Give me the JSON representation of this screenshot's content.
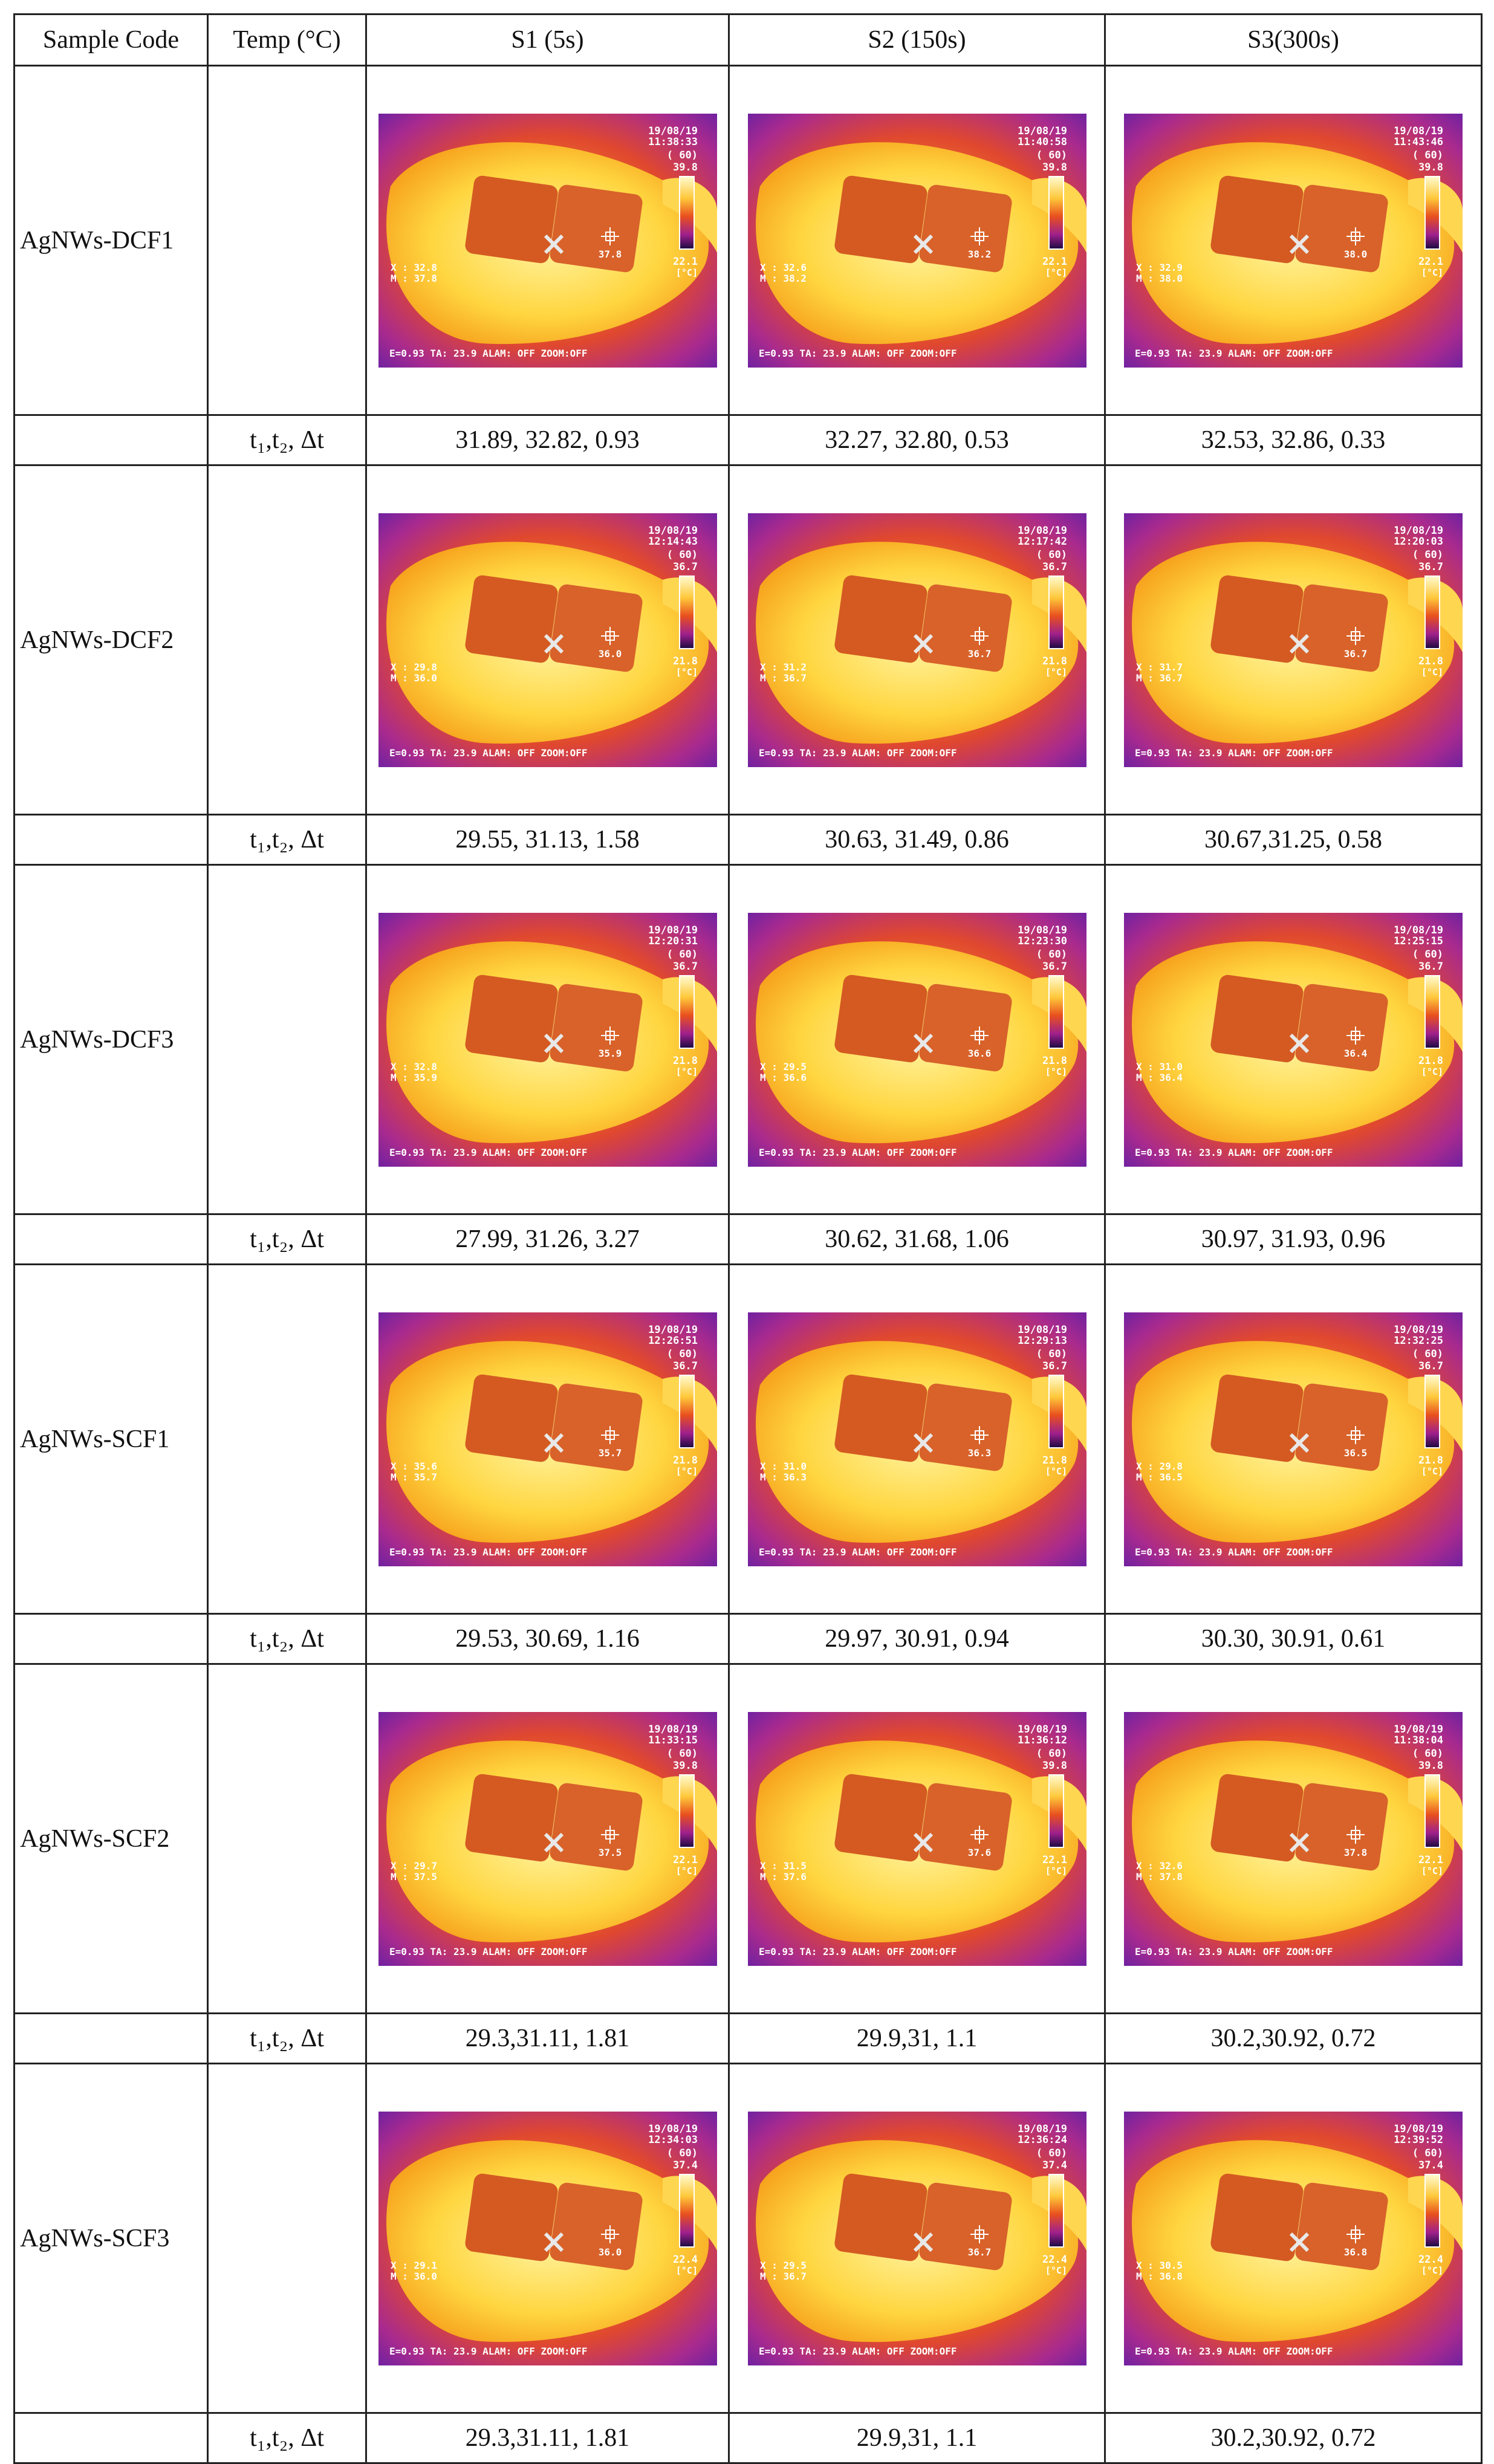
{
  "headers": [
    "Sample Code",
    "Temp (°C)",
    "S1 (5s)",
    "S2 (150s)",
    "S3(300s)"
  ],
  "temp_label": "t₁,t₂,  Δt",
  "rows": [
    {
      "code": "AgNWs-DCF1",
      "images": [
        {
          "date": "19/08/19",
          "time": "11:38:33",
          "max": "39.8",
          "min": "22.1",
          "spot": "37.8",
          "x": "32.8",
          "m": "37.8"
        },
        {
          "date": "19/08/19",
          "time": "11:40:58",
          "max": "39.8",
          "min": "22.1",
          "spot": "38.2",
          "x": "32.6",
          "m": "38.2"
        },
        {
          "date": "19/08/19",
          "time": "11:43:46",
          "max": "39.8",
          "min": "22.1",
          "spot": "38.0",
          "x": "32.9",
          "m": "38.0"
        }
      ],
      "values": [
        "31.89, 32.82, 0.93",
        "32.27, 32.80, 0.53",
        "32.53, 32.86, 0.33"
      ]
    },
    {
      "code": "AgNWs-DCF2",
      "images": [
        {
          "date": "19/08/19",
          "time": "12:14:43",
          "max": "36.7",
          "min": "21.8",
          "spot": "36.0",
          "x": "29.8",
          "m": "36.0"
        },
        {
          "date": "19/08/19",
          "time": "12:17:42",
          "max": "36.7",
          "min": "21.8",
          "spot": "36.7",
          "x": "31.2",
          "m": "36.7"
        },
        {
          "date": "19/08/19",
          "time": "12:20:03",
          "max": "36.7",
          "min": "21.8",
          "spot": "36.7",
          "x": "31.7",
          "m": "36.7"
        }
      ],
      "values": [
        "29.55, 31.13, 1.58",
        "30.63, 31.49, 0.86",
        "30.67,31.25, 0.58"
      ]
    },
    {
      "code": "AgNWs-DCF3",
      "images": [
        {
          "date": "19/08/19",
          "time": "12:20:31",
          "max": "36.7",
          "min": "21.8",
          "spot": "35.9",
          "x": "32.8",
          "m": "35.9"
        },
        {
          "date": "19/08/19",
          "time": "12:23:30",
          "max": "36.7",
          "min": "21.8",
          "spot": "36.6",
          "x": "29.5",
          "m": "36.6"
        },
        {
          "date": "19/08/19",
          "time": "12:25:15",
          "max": "36.7",
          "min": "21.8",
          "spot": "36.4",
          "x": "31.0",
          "m": "36.4"
        }
      ],
      "values": [
        "27.99, 31.26, 3.27",
        "30.62, 31.68, 1.06",
        "30.97, 31.93, 0.96"
      ]
    },
    {
      "code": "AgNWs-SCF1",
      "images": [
        {
          "date": "19/08/19",
          "time": "12:26:51",
          "max": "36.7",
          "min": "21.8",
          "spot": "35.7",
          "x": "35.6",
          "m": "35.7"
        },
        {
          "date": "19/08/19",
          "time": "12:29:13",
          "max": "36.7",
          "min": "21.8",
          "spot": "36.3",
          "x": "31.0",
          "m": "36.3"
        },
        {
          "date": "19/08/19",
          "time": "12:32:25",
          "max": "36.7",
          "min": "21.8",
          "spot": "36.5",
          "x": "29.8",
          "m": "36.5"
        }
      ],
      "values": [
        "29.53, 30.69, 1.16",
        "29.97, 30.91, 0.94",
        "30.30, 30.91, 0.61"
      ]
    },
    {
      "code": "AgNWs-SCF2",
      "images": [
        {
          "date": "19/08/19",
          "time": "11:33:15",
          "max": "39.8",
          "min": "22.1",
          "spot": "37.5",
          "x": "29.7",
          "m": "37.5"
        },
        {
          "date": "19/08/19",
          "time": "11:36:12",
          "max": "39.8",
          "min": "22.1",
          "spot": "37.6",
          "x": "31.5",
          "m": "37.6"
        },
        {
          "date": "19/08/19",
          "time": "11:38:04",
          "max": "39.8",
          "min": "22.1",
          "spot": "37.8",
          "x": "32.6",
          "m": "37.8"
        }
      ],
      "values": [
        "29.3,31.11, 1.81",
        "29.9,31, 1.1",
        "30.2,30.92, 0.72"
      ]
    },
    {
      "code": "AgNWs-SCF3",
      "images": [
        {
          "date": "19/08/19",
          "time": "12:34:03",
          "max": "37.4",
          "min": "22.4",
          "spot": "36.0",
          "x": "29.1",
          "m": "36.0"
        },
        {
          "date": "19/08/19",
          "time": "12:36:24",
          "max": "37.4",
          "min": "22.4",
          "spot": "36.7",
          "x": "29.5",
          "m": "36.7"
        },
        {
          "date": "19/08/19",
          "time": "12:39:52",
          "max": "37.4",
          "min": "22.4",
          "spot": "36.8",
          "x": "30.5",
          "m": "36.8"
        }
      ],
      "values": [
        "29.3,31.11, 1.81",
        "29.9,31, 1.1",
        "30.2,30.92, 0.72"
      ]
    }
  ],
  "camera": {
    "range": "( 60)",
    "footer": "E=0.93  TA: 23.9  ALAM: OFF   ZOOM:OFF",
    "unit": "[°C]"
  },
  "colors": {
    "purple": "#6a1fb0",
    "magenta": "#c2237a",
    "orange": "#f07a10",
    "yellow": "#ffe86a",
    "patch": "#d2561f",
    "grid": "#222222"
  }
}
